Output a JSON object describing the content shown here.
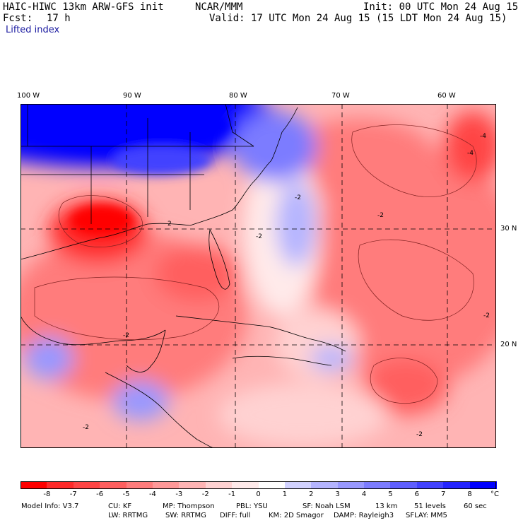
{
  "header": {
    "model": "HAIC-HIWC 13km ARW-GFS init",
    "org": "NCAR/MMM",
    "init": "Init: 00 UTC Mon 24 Aug 15",
    "fcst_label": "Fcst:",
    "fcst_value": "17 h",
    "valid": "Valid: 17 UTC Mon 24 Aug 15 (15 LDT Mon 24 Aug 15)",
    "field": "Lifted index"
  },
  "map": {
    "lon_labels": [
      "100 W",
      "90 W",
      "80 W",
      "70 W",
      "60 W"
    ],
    "lat_labels": [
      "30 N",
      "20 N"
    ],
    "contour_labels": [
      "-4",
      "-4",
      "-2",
      "-2",
      "-2",
      "-2",
      "2",
      "-2",
      "-2",
      "-2"
    ]
  },
  "colorbar": {
    "colors": [
      "#ff0000",
      "#ff2a2a",
      "#ff4545",
      "#ff5f5f",
      "#ff7c7c",
      "#ff9898",
      "#ffb4b4",
      "#ffd2d2",
      "#ffeaea",
      "#ffffff",
      "#d2d2ff",
      "#b4b4ff",
      "#9898ff",
      "#7c7cff",
      "#5f5fff",
      "#4242ff",
      "#2424ff",
      "#0000ff"
    ],
    "labels": [
      "-8",
      "-7",
      "-6",
      "-5",
      "-4",
      "-3",
      "-2",
      "-1",
      "0",
      "1",
      "2",
      "3",
      "4",
      "5",
      "6",
      "7",
      "8"
    ],
    "unit": "°C"
  },
  "model_info": {
    "line1": [
      "Model Info: V3.7",
      "CU: KF",
      "MP: Thompson",
      "PBL: YSU",
      "SF: Noah LSM",
      "13 km",
      "51 levels",
      "60 sec"
    ],
    "line2": [
      "LW: RRTMG",
      "SW: RRTMG",
      "DIFF: full",
      "KM: 2D Smagor",
      "DAMP: Rayleigh3",
      "SFLAY: MM5"
    ]
  }
}
